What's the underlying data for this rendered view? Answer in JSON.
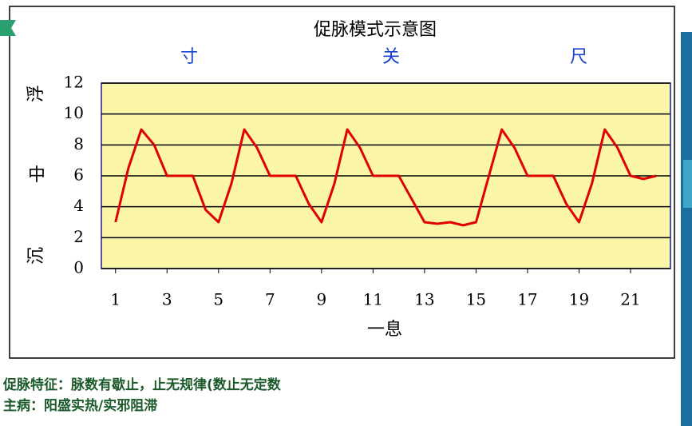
{
  "chart_data": {
    "type": "line",
    "title": "促脉模式示意图",
    "position_labels": [
      "寸",
      "关",
      "尺"
    ],
    "depth_labels": [
      "浮",
      "中",
      "沉"
    ],
    "x_label": "一息",
    "x": [
      1,
      1.5,
      2,
      2.5,
      3,
      3.5,
      4,
      4.5,
      5,
      5.5,
      6,
      6.5,
      7,
      7.5,
      8,
      8.5,
      9,
      9.5,
      10,
      10.5,
      11,
      11.5,
      12,
      12.5,
      13,
      13.5,
      14,
      14.5,
      15,
      15.5,
      16,
      16.5,
      17,
      17.5,
      18,
      18.5,
      19,
      19.5,
      20,
      20.5,
      21,
      21.5,
      22
    ],
    "series": [
      {
        "color": "#e00000",
        "values": [
          3,
          6.5,
          9,
          8,
          6,
          6,
          6,
          3.8,
          3,
          5.5,
          9,
          7.8,
          6,
          6,
          6,
          4.2,
          3,
          5.5,
          9,
          7.8,
          6,
          6,
          6,
          4.5,
          3,
          2.9,
          3,
          2.8,
          3,
          6,
          9,
          7.8,
          6,
          6,
          6,
          4.2,
          3,
          5.5,
          9,
          7.8,
          6,
          5.8,
          6
        ]
      }
    ],
    "xlim": [
      0.45,
      22.55
    ],
    "xticks": [
      1,
      3,
      5,
      7,
      9,
      11,
      13,
      15,
      17,
      19,
      21
    ],
    "ylim": [
      0,
      12
    ],
    "yticks": [
      0,
      2,
      4,
      6,
      8,
      10,
      12
    ],
    "grid": true,
    "notes": [
      "促脉特征：脉数有歇止，止无规律(数止无定数",
      "主病：阳盛实热/实邪阻滞"
    ]
  }
}
